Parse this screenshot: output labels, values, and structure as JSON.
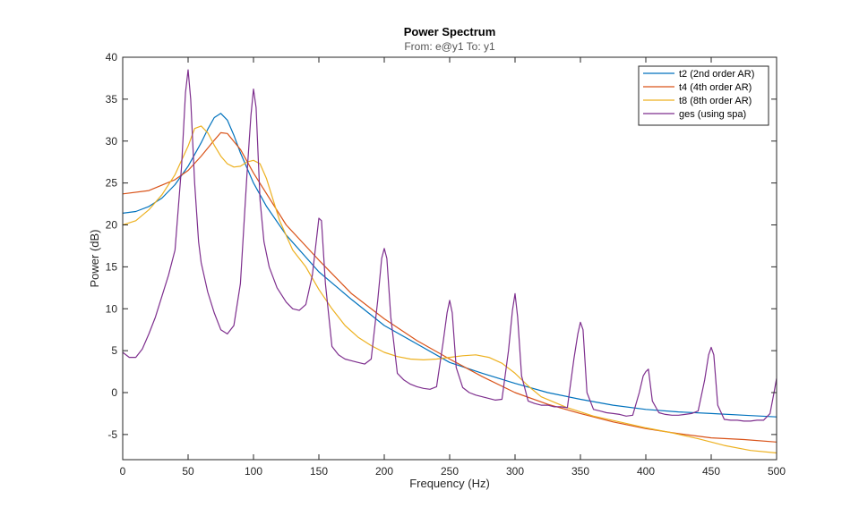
{
  "chart_data": {
    "type": "line",
    "title": "Power Spectrum",
    "subtitle": "From: e@y1  To: y1",
    "xlabel": "Frequency  (Hz)",
    "ylabel": "Power (dB)",
    "xlim": [
      0,
      500
    ],
    "ylim": [
      -8,
      40
    ],
    "xticks": [
      0,
      50,
      100,
      150,
      200,
      250,
      300,
      350,
      400,
      450,
      500
    ],
    "yticks": [
      -5,
      0,
      5,
      10,
      15,
      20,
      25,
      30,
      35,
      40
    ],
    "grid": false,
    "legend_position": "top-right",
    "series": [
      {
        "name": "t2 (2nd order AR)",
        "color": "#0072BD",
        "x": [
          0,
          10,
          20,
          30,
          40,
          50,
          60,
          65,
          70,
          75,
          80,
          85,
          90,
          100,
          110,
          125,
          150,
          175,
          200,
          225,
          250,
          275,
          300,
          325,
          350,
          375,
          400,
          425,
          450,
          475,
          500
        ],
        "y": [
          21.4,
          21.6,
          22.2,
          23.2,
          24.8,
          27.0,
          29.8,
          31.4,
          32.8,
          33.3,
          32.5,
          30.7,
          28.6,
          25.0,
          22.2,
          18.8,
          14.4,
          11.1,
          8.0,
          5.8,
          3.6,
          2.3,
          1.1,
          0.0,
          -0.8,
          -1.5,
          -2.0,
          -2.3,
          -2.5,
          -2.7,
          -2.9
        ]
      },
      {
        "name": "t4 (4th order AR)",
        "color": "#D95319",
        "x": [
          0,
          20,
          40,
          50,
          60,
          70,
          75,
          80,
          90,
          100,
          125,
          150,
          175,
          200,
          225,
          250,
          275,
          300,
          325,
          350,
          375,
          400,
          425,
          450,
          475,
          500
        ],
        "y": [
          23.7,
          24.1,
          25.4,
          26.5,
          28.2,
          30.1,
          31.0,
          30.9,
          29.0,
          26.2,
          20.0,
          15.8,
          11.8,
          8.8,
          6.2,
          4.0,
          1.9,
          0.0,
          -1.4,
          -2.5,
          -3.5,
          -4.3,
          -4.9,
          -5.4,
          -5.6,
          -5.9
        ]
      },
      {
        "name": "t8 (8th order AR)",
        "color": "#EDB120",
        "x": [
          0,
          10,
          20,
          30,
          40,
          50,
          55,
          60,
          65,
          70,
          75,
          80,
          85,
          90,
          95,
          100,
          105,
          110,
          120,
          130,
          140,
          150,
          160,
          170,
          180,
          190,
          200,
          210,
          220,
          230,
          240,
          250,
          260,
          270,
          280,
          290,
          300,
          310,
          320,
          340,
          360,
          380,
          400,
          420,
          440,
          460,
          480,
          500
        ],
        "y": [
          20.0,
          20.5,
          21.8,
          23.6,
          26.0,
          29.4,
          31.5,
          31.8,
          31.0,
          29.5,
          28.2,
          27.3,
          26.9,
          27.0,
          27.5,
          27.7,
          27.3,
          25.5,
          20.5,
          17.0,
          15.0,
          12.3,
          10.0,
          8.0,
          6.6,
          5.6,
          4.8,
          4.3,
          4.0,
          3.9,
          4.0,
          4.2,
          4.4,
          4.5,
          4.2,
          3.5,
          2.3,
          0.8,
          -0.5,
          -1.8,
          -2.8,
          -3.5,
          -4.2,
          -4.8,
          -5.5,
          -6.3,
          -6.9,
          -7.2
        ]
      },
      {
        "name": "ges (using spa)",
        "color": "#7E2F8E",
        "x": [
          0,
          5,
          10,
          15,
          20,
          25,
          30,
          35,
          40,
          45,
          48,
          50,
          52,
          55,
          58,
          60,
          65,
          70,
          75,
          80,
          85,
          90,
          95,
          98,
          100,
          102,
          105,
          108,
          112,
          118,
          125,
          130,
          135,
          140,
          145,
          150,
          152,
          155,
          160,
          165,
          170,
          175,
          180,
          185,
          190,
          195,
          198,
          200,
          202,
          205,
          210,
          215,
          220,
          225,
          230,
          235,
          240,
          245,
          248,
          250,
          252,
          255,
          260,
          265,
          270,
          275,
          280,
          285,
          290,
          295,
          298,
          300,
          302,
          305,
          310,
          315,
          320,
          325,
          330,
          335,
          340,
          345,
          348,
          350,
          352,
          355,
          360,
          365,
          370,
          375,
          380,
          385,
          390,
          395,
          398,
          400,
          402,
          405,
          410,
          415,
          420,
          425,
          430,
          435,
          440,
          445,
          448,
          450,
          452,
          455,
          460,
          465,
          470,
          475,
          480,
          485,
          490,
          495,
          498,
          500
        ],
        "y": [
          4.8,
          4.2,
          4.2,
          5.2,
          7.0,
          9.0,
          11.5,
          14.0,
          17.0,
          27.0,
          35.8,
          38.5,
          35.0,
          25.0,
          18.0,
          15.5,
          12.0,
          9.5,
          7.5,
          7.0,
          8.0,
          13.0,
          26.0,
          33.0,
          36.2,
          34.0,
          23.0,
          18.0,
          15.0,
          12.5,
          10.8,
          10.0,
          9.8,
          10.5,
          14.0,
          20.8,
          20.5,
          13.0,
          5.5,
          4.5,
          4.0,
          3.8,
          3.6,
          3.4,
          4.0,
          11.0,
          16.0,
          17.2,
          16.0,
          9.0,
          2.3,
          1.5,
          1.0,
          0.7,
          0.5,
          0.4,
          0.7,
          6.0,
          9.5,
          11.0,
          9.5,
          3.0,
          0.6,
          0.0,
          -0.3,
          -0.5,
          -0.7,
          -0.9,
          -0.8,
          5.0,
          9.8,
          11.8,
          9.0,
          2.0,
          -1.0,
          -1.3,
          -1.5,
          -1.5,
          -1.7,
          -1.7,
          -1.8,
          4.0,
          7.0,
          8.4,
          7.5,
          0.0,
          -2.0,
          -2.2,
          -2.4,
          -2.5,
          -2.6,
          -2.8,
          -2.7,
          0.0,
          2.0,
          2.5,
          2.8,
          -1.0,
          -2.4,
          -2.6,
          -2.7,
          -2.7,
          -2.6,
          -2.5,
          -2.2,
          1.5,
          4.5,
          5.4,
          4.5,
          -1.5,
          -3.2,
          -3.3,
          -3.3,
          -3.4,
          -3.4,
          -3.3,
          -3.3,
          -2.5,
          0.0,
          1.7
        ]
      }
    ]
  }
}
